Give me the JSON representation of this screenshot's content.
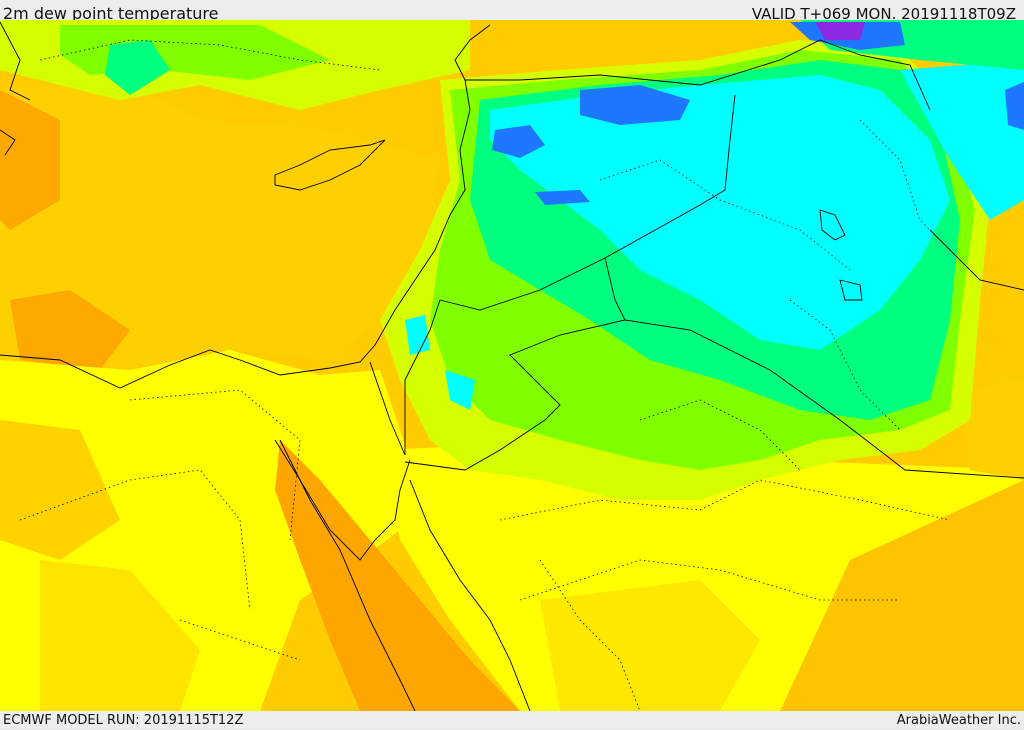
{
  "header": {
    "title": "2m dew point temperature",
    "valid": "VALID T+069 MON. 20191118T09Z"
  },
  "footer": {
    "model_run": "ECMWF MODEL RUN: 20191115T12Z",
    "credit": "ArabiaWeather Inc."
  },
  "palette": {
    "orange": "#ffa500",
    "light_orange": "#ffc400",
    "yellow": "#ffff00",
    "yellow_green": "#d5ff00",
    "green": "#7fff00",
    "spring_green": "#00ff7f",
    "cyan": "#00ffff",
    "blue": "#1e78ff",
    "violet": "#8a2be2"
  }
}
